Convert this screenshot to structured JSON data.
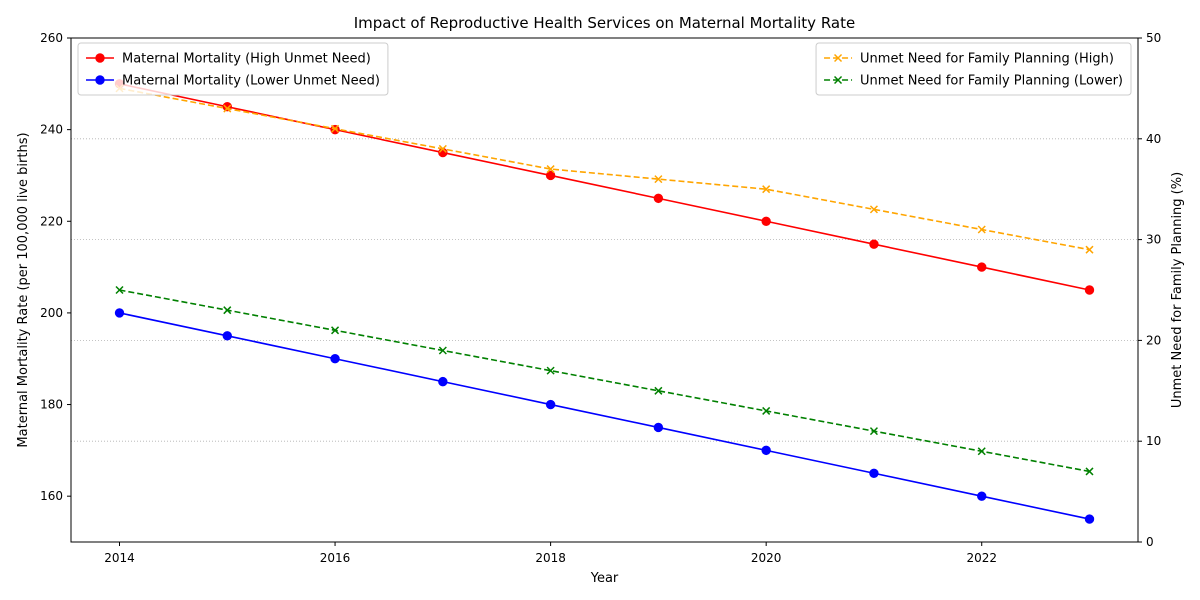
{
  "chart_data": {
    "type": "line",
    "title": "Impact of Reproductive Health Services on Maternal Mortality Rate",
    "xlabel": "Year",
    "ylabel": "Maternal Mortality Rate (per 100,000 live births)",
    "y2label": "Unmet Need for Family Planning (%)",
    "x": [
      2014,
      2015,
      2016,
      2017,
      2018,
      2019,
      2020,
      2021,
      2022,
      2023
    ],
    "xticks": [
      2014,
      2016,
      2018,
      2020,
      2022
    ],
    "xlim": [
      2013.55,
      2023.45
    ],
    "ylim": [
      150,
      260
    ],
    "yticks": [
      160,
      180,
      200,
      220,
      240,
      260
    ],
    "y2lim": [
      0,
      50
    ],
    "y2ticks": [
      0,
      10,
      20,
      30,
      40,
      50
    ],
    "grid": "horizontal dotted",
    "series": [
      {
        "name": "Maternal Mortality (High Unmet Need)",
        "axis": "left",
        "color": "#ff0000",
        "style": "solid",
        "marker": "circle",
        "values": [
          250,
          245,
          240,
          235,
          230,
          225,
          220,
          215,
          210,
          205
        ]
      },
      {
        "name": "Maternal Mortality (Lower Unmet Need)",
        "axis": "left",
        "color": "#0000ff",
        "style": "solid",
        "marker": "circle",
        "values": [
          200,
          195,
          190,
          185,
          180,
          175,
          170,
          165,
          160,
          155
        ]
      },
      {
        "name": "Unmet Need for Family Planning (High)",
        "axis": "right",
        "color": "#ffa500",
        "style": "dashed",
        "marker": "x",
        "values": [
          45,
          43,
          41,
          39,
          37,
          36,
          35,
          33,
          31,
          29
        ]
      },
      {
        "name": "Unmet Need for Family Planning (Lower)",
        "axis": "right",
        "color": "#008000",
        "style": "dashed",
        "marker": "x",
        "values": [
          25,
          23,
          21,
          19,
          17,
          15,
          13,
          11,
          9,
          7
        ]
      }
    ],
    "legend_left": "upper-left",
    "legend_right": "upper-right"
  }
}
